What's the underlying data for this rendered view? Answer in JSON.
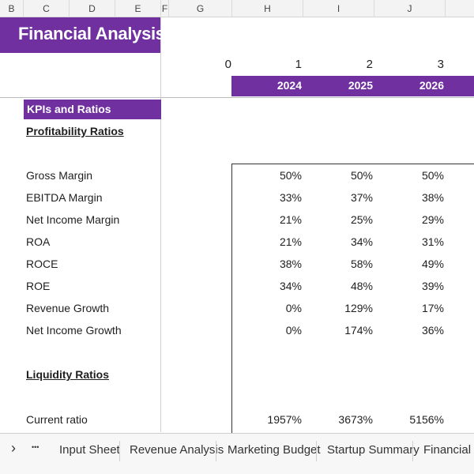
{
  "column_headers": [
    "B",
    "C",
    "D",
    "E",
    "F",
    "G",
    "H",
    "I",
    "J"
  ],
  "title": "Financial Analysis",
  "periods": [
    "0",
    "1",
    "2",
    "3"
  ],
  "years": [
    "2024",
    "2025",
    "2026"
  ],
  "kpi_section": "KPIs and Ratios",
  "profitability": {
    "heading": "Profitability Ratios",
    "rows": [
      {
        "label": "Gross Margin",
        "values": [
          "50%",
          "50%",
          "50%"
        ]
      },
      {
        "label": "EBITDA Margin",
        "values": [
          "33%",
          "37%",
          "38%"
        ]
      },
      {
        "label": "Net Income Margin",
        "values": [
          "21%",
          "25%",
          "29%"
        ]
      },
      {
        "label": "ROA",
        "values": [
          "21%",
          "34%",
          "31%"
        ]
      },
      {
        "label": "ROCE",
        "values": [
          "38%",
          "58%",
          "49%"
        ]
      },
      {
        "label": "ROE",
        "values": [
          "34%",
          "48%",
          "39%"
        ]
      },
      {
        "label": "Revenue Growth",
        "values": [
          "0%",
          "129%",
          "17%"
        ]
      },
      {
        "label": "Net Income Growth",
        "values": [
          "0%",
          "174%",
          "36%"
        ]
      }
    ]
  },
  "liquidity": {
    "heading": "Liquidity Ratios",
    "rows": [
      {
        "label": "Current ratio",
        "values": [
          "1957%",
          "3673%",
          "5156%"
        ]
      }
    ]
  },
  "tabs": {
    "next_glyph": "›",
    "more_glyph": "•••",
    "items": [
      "Input Sheet",
      "Revenue Analysis",
      "Marketing Budget",
      "Startup Summary",
      "Financial Sta"
    ]
  },
  "colors": {
    "accent": "#7030a0"
  }
}
